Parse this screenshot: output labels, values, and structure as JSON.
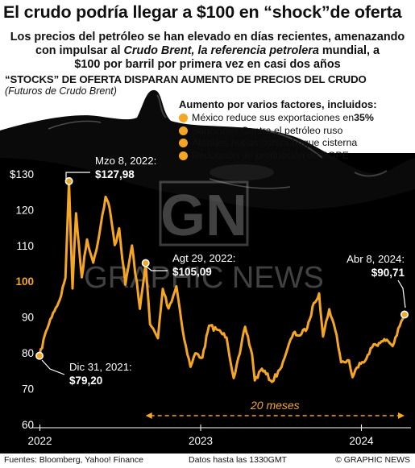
{
  "headline": "El crudo podría llegar a $100 en “shock”de oferta",
  "subhead": {
    "line1": "Los precios del petróleo se han elevado en días recientes, amenazando",
    "line2_pre": "con impulsar al ",
    "line2_italic": "Crudo Brent, la referencia petrolera",
    "line2_post": " mundial, a",
    "line3": "$100 por barril por primera vez en casi dos años"
  },
  "chart_title": "“STOCKS” DE OFERTA DISPARAN AUMENTO DE PRECIOS DEL CRUDO",
  "chart_subtitle": "(Futuros de Crudo Brent)",
  "factors": {
    "title": "Aumento por varios factores, incluidos:",
    "items": [
      {
        "text": "México reduce sus exportaciones en ",
        "bold": "35%"
      },
      {
        "text": "Sanciones Contra el petróleo ruso",
        "bold": ""
      },
      {
        "text": "Ataques hutías contra buque cisterna",
        "bold": ""
      },
      {
        "text": "Reducción de producción de POPE",
        "bold": ""
      }
    ]
  },
  "colors": {
    "line": "#f5a623",
    "background": "#000000",
    "text": "#ffffff",
    "highlight": "#f5a623"
  },
  "chart_data": {
    "type": "line",
    "title": "“STOCKS” DE OFERTA DISPARAN AUMENTO DE PRECIOS DEL CRUDO",
    "subtitle": "(Futuros de Crudo Brent)",
    "xlabel": "",
    "ylabel": "",
    "xlim": [
      "2021-12-31",
      "2024-04-08"
    ],
    "ylim": [
      60,
      132
    ],
    "grid": false,
    "y_ticks": [
      {
        "value": 130,
        "label": "$130"
      },
      {
        "value": 120,
        "label": "120"
      },
      {
        "value": 110,
        "label": "110"
      },
      {
        "value": 100,
        "label": "100",
        "highlight": true
      },
      {
        "value": 90,
        "label": "90"
      },
      {
        "value": 80,
        "label": "80"
      },
      {
        "value": 70,
        "label": "70"
      },
      {
        "value": 60,
        "label": "60"
      }
    ],
    "x_ticks": [
      {
        "date": "2022-01-01",
        "label": "2022"
      },
      {
        "date": "2023-01-01",
        "label": "2023"
      },
      {
        "date": "2024-01-01",
        "label": "2024"
      }
    ],
    "series": [
      {
        "x": [
          "2021-12-31",
          "2022-01-15",
          "2022-01-31",
          "2022-02-15",
          "2022-02-28",
          "2022-03-08",
          "2022-03-16",
          "2022-03-24",
          "2022-04-06",
          "2022-04-18",
          "2022-05-02",
          "2022-05-16",
          "2022-05-30",
          "2022-06-08",
          "2022-06-20",
          "2022-06-30",
          "2022-07-14",
          "2022-07-29",
          "2022-08-16",
          "2022-08-29",
          "2022-09-08",
          "2022-09-26",
          "2022-10-07",
          "2022-10-20",
          "2022-11-07",
          "2022-11-25",
          "2022-12-09",
          "2022-12-20",
          "2023-01-05",
          "2023-01-20",
          "2023-02-10",
          "2023-03-01",
          "2023-03-17",
          "2023-03-31",
          "2023-04-12",
          "2023-04-28",
          "2023-05-04",
          "2023-05-20",
          "2023-06-12",
          "2023-06-30",
          "2023-07-14",
          "2023-07-31",
          "2023-08-15",
          "2023-08-31",
          "2023-09-15",
          "2023-09-27",
          "2023-10-06",
          "2023-10-20",
          "2023-11-06",
          "2023-11-16",
          "2023-12-04",
          "2023-12-12",
          "2023-12-28",
          "2024-01-12",
          "2024-01-29",
          "2024-02-13",
          "2024-02-28",
          "2024-03-12",
          "2024-03-28",
          "2024-04-08"
        ],
        "values": [
          79.2,
          86.1,
          91.2,
          94.8,
          100.9,
          127.98,
          98.0,
          119.0,
          101.1,
          111.7,
          105.2,
          113.2,
          123.6,
          120.6,
          110.1,
          114.8,
          99.1,
          110.0,
          92.3,
          105.09,
          88.0,
          84.1,
          97.9,
          92.4,
          98.6,
          83.6,
          76.1,
          79.9,
          78.7,
          87.6,
          86.4,
          84.3,
          72.97,
          79.8,
          87.3,
          79.5,
          72.3,
          75.6,
          71.9,
          75.4,
          79.9,
          85.6,
          84.9,
          86.9,
          93.9,
          96.6,
          84.6,
          92.2,
          84.9,
          77.4,
          77.9,
          73.2,
          77.2,
          78.3,
          82.4,
          82.8,
          83.7,
          81.9,
          87.5,
          90.71
        ]
      }
    ],
    "annotations": [
      {
        "date_label": "Mzo 8, 2022:",
        "value_label": "$127,98",
        "x": "2022-03-08",
        "y": 127.98
      },
      {
        "date_label": "Agt 29, 2022:",
        "value_label": "$105,09",
        "x": "2022-08-29",
        "y": 105.09
      },
      {
        "date_label": "Dic 31, 2021:",
        "value_label": "$79,20",
        "x": "2021-12-31",
        "y": 79.2
      },
      {
        "date_label": "Abr 8, 2024:",
        "value_label": "$90,71",
        "x": "2024-04-08",
        "y": 90.71
      }
    ],
    "span_label": "20 meses",
    "span": [
      "2022-08-29",
      "2024-04-08"
    ]
  },
  "watermark": {
    "logo": "GN",
    "text": "GRAPHIC NEWS"
  },
  "footer": {
    "sources": "Fuentes: Bloomberg, Yahoo! Finance",
    "as_of": "Datos hasta las 1330GMT",
    "copyright": "© GRAPHIC NEWS"
  }
}
